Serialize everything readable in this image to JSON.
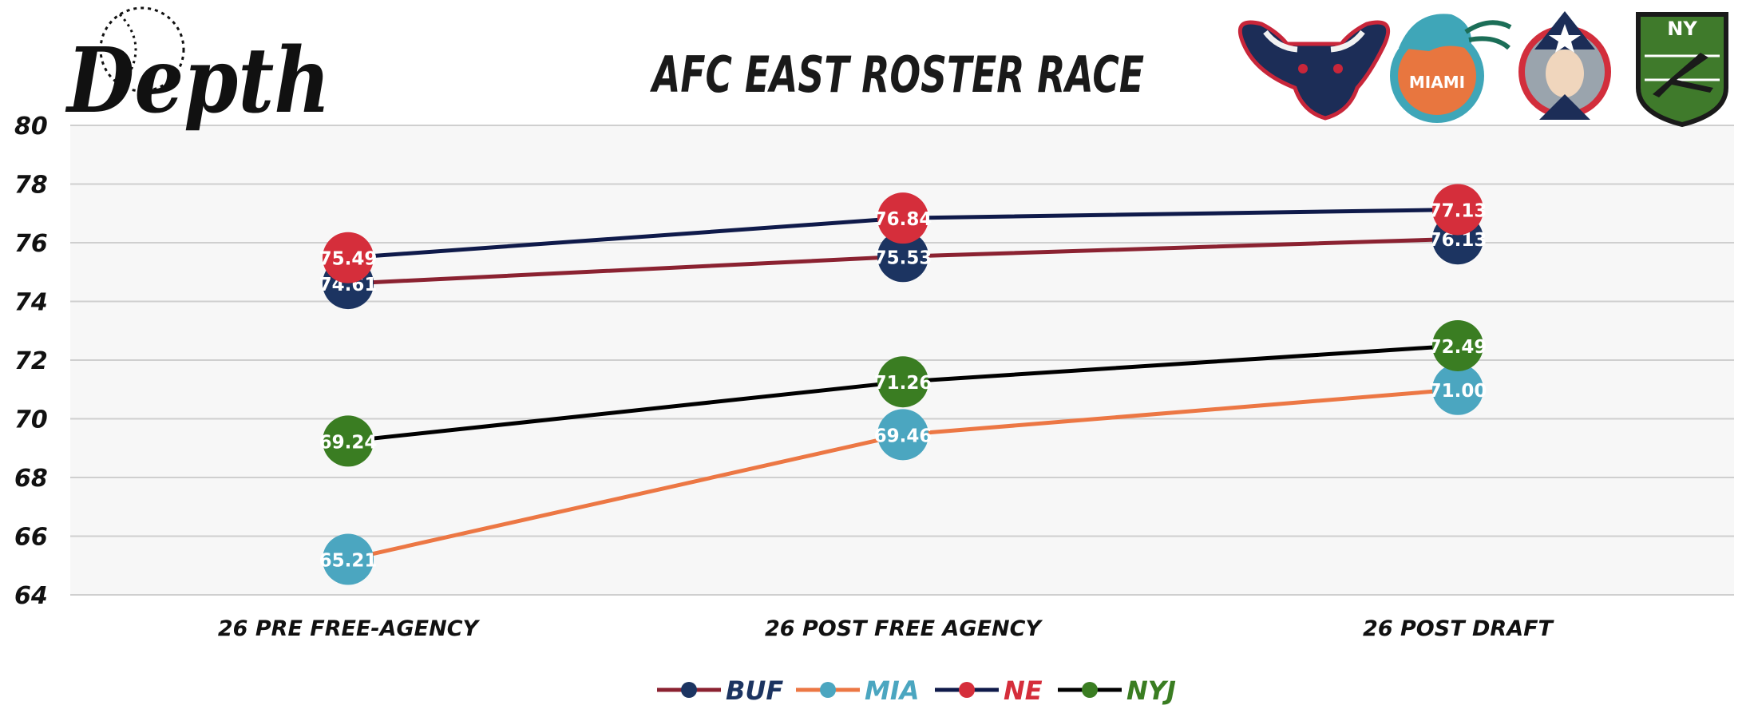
{
  "brand": {
    "logo_text": "Depth"
  },
  "team_logos": [
    {
      "name": "bull-logo",
      "color": "#1c2d57",
      "accent": "#c8263a"
    },
    {
      "name": "dolphin-logo",
      "text": "MIAMI",
      "color": "#3fa6b8",
      "accent": "#e8763f"
    },
    {
      "name": "patriot-logo",
      "color": "#1c2d57",
      "accent": "#d22e3c"
    },
    {
      "name": "jet-logo",
      "text": "NY",
      "color": "#3f7a2b",
      "accent": "#1a1a1a"
    }
  ],
  "chart_data": {
    "type": "line",
    "title": "AFC EAST ROSTER RACE",
    "categories": [
      "26 PRE FREE-AGENCY",
      "26 POST FREE AGENCY",
      "26 POST DRAFT"
    ],
    "ylim": [
      64,
      80
    ],
    "yticks": [
      64,
      66,
      68,
      70,
      72,
      74,
      76,
      78,
      80
    ],
    "grid": true,
    "legend_position": "bottom",
    "series": [
      {
        "name": "BUF",
        "values": [
          74.61,
          75.53,
          76.13
        ],
        "labels": [
          "74.61",
          "75.53",
          "76.13"
        ],
        "line_color": "#8b2231",
        "marker_color": "#1c3461",
        "legend_color": "#1c3461"
      },
      {
        "name": "MIA",
        "values": [
          65.21,
          69.46,
          71.0
        ],
        "labels": [
          "65.21",
          "69.46",
          "71.00"
        ],
        "line_color": "#ec7744",
        "marker_color": "#4ba6c0",
        "legend_color": "#4ba6c0"
      },
      {
        "name": "NE",
        "values": [
          75.49,
          76.84,
          77.13
        ],
        "labels": [
          "75.49",
          "76.84",
          "77.13"
        ],
        "line_color": "#0f1a4a",
        "marker_color": "#d52e3b",
        "legend_color": "#d52e3b"
      },
      {
        "name": "NYJ",
        "values": [
          69.24,
          71.26,
          72.49
        ],
        "labels": [
          "69.24",
          "71.26",
          "72.49"
        ],
        "line_color": "#000000",
        "marker_color": "#3a7d22",
        "legend_color": "#3a7d22"
      }
    ]
  }
}
